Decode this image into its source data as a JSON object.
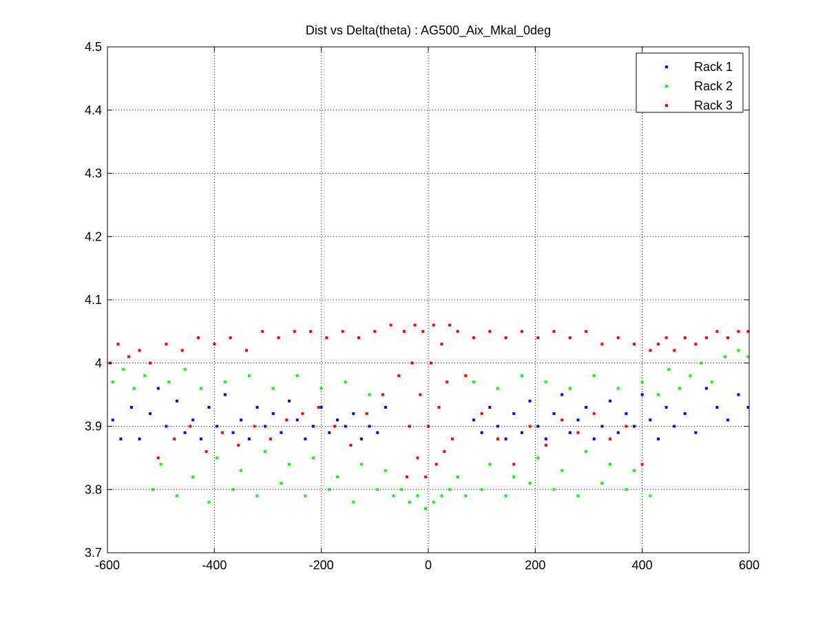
{
  "chart_data": {
    "type": "scatter",
    "title": "Dist vs Delta(theta) : AG500_Aix_Mkal_0deg",
    "xlabel": "",
    "ylabel": "",
    "xlim": [
      -600,
      600
    ],
    "ylim": [
      3.7,
      4.5
    ],
    "xticks": [
      -600,
      -400,
      -200,
      0,
      200,
      400,
      600
    ],
    "yticks": [
      3.7,
      3.8,
      3.9,
      4,
      4.1,
      4.2,
      4.3,
      4.4,
      4.5
    ],
    "xtick_labels": [
      "-600",
      "-400",
      "-200",
      "0",
      "200",
      "400",
      "600"
    ],
    "ytick_labels": [
      "3.7",
      "3.8",
      "3.9",
      "4",
      "4.1",
      "4.2",
      "4.3",
      "4.4",
      "4.5"
    ],
    "grid": true,
    "legend_position": "top-right",
    "series": [
      {
        "name": "Rack 1",
        "color": "#0000ff",
        "points": [
          [
            -590,
            3.91
          ],
          [
            -575,
            3.88
          ],
          [
            -555,
            3.93
          ],
          [
            -540,
            3.88
          ],
          [
            -520,
            3.92
          ],
          [
            -505,
            3.96
          ],
          [
            -490,
            3.9
          ],
          [
            -470,
            3.94
          ],
          [
            -455,
            3.89
          ],
          [
            -440,
            3.91
          ],
          [
            -425,
            3.88
          ],
          [
            -410,
            3.93
          ],
          [
            -395,
            3.9
          ],
          [
            -380,
            3.95
          ],
          [
            -365,
            3.89
          ],
          [
            -350,
            3.91
          ],
          [
            -335,
            3.88
          ],
          [
            -320,
            3.93
          ],
          [
            -305,
            3.9
          ],
          [
            -290,
            3.92
          ],
          [
            -275,
            3.89
          ],
          [
            -260,
            3.94
          ],
          [
            -245,
            3.91
          ],
          [
            -230,
            3.88
          ],
          [
            -215,
            3.9
          ],
          [
            -200,
            3.93
          ],
          [
            -185,
            3.89
          ],
          [
            -170,
            3.91
          ],
          [
            -155,
            3.9
          ],
          [
            -140,
            3.92
          ],
          [
            -125,
            3.88
          ],
          [
            -110,
            3.9
          ],
          [
            -95,
            3.89
          ],
          [
            -80,
            3.93
          ],
          [
            85,
            3.91
          ],
          [
            100,
            3.89
          ],
          [
            115,
            3.93
          ],
          [
            130,
            3.9
          ],
          [
            145,
            3.88
          ],
          [
            160,
            3.92
          ],
          [
            175,
            3.89
          ],
          [
            190,
            3.94
          ],
          [
            205,
            3.9
          ],
          [
            220,
            3.88
          ],
          [
            235,
            3.92
          ],
          [
            250,
            3.95
          ],
          [
            265,
            3.89
          ],
          [
            280,
            3.91
          ],
          [
            295,
            3.93
          ],
          [
            310,
            3.88
          ],
          [
            325,
            3.9
          ],
          [
            340,
            3.94
          ],
          [
            355,
            3.89
          ],
          [
            370,
            3.92
          ],
          [
            385,
            3.9
          ],
          [
            400,
            3.95
          ],
          [
            415,
            3.91
          ],
          [
            430,
            3.88
          ],
          [
            445,
            3.93
          ],
          [
            460,
            3.9
          ],
          [
            480,
            3.92
          ],
          [
            500,
            3.89
          ],
          [
            520,
            3.96
          ],
          [
            540,
            3.93
          ],
          [
            560,
            3.91
          ],
          [
            580,
            3.95
          ],
          [
            598,
            3.93
          ]
        ]
      },
      {
        "name": "Rack 2",
        "color": "#00ff00",
        "points": [
          [
            -590,
            3.97
          ],
          [
            -570,
            3.99
          ],
          [
            -550,
            3.96
          ],
          [
            -530,
            3.98
          ],
          [
            -515,
            3.8
          ],
          [
            -500,
            3.84
          ],
          [
            -485,
            3.97
          ],
          [
            -470,
            3.79
          ],
          [
            -455,
            3.99
          ],
          [
            -440,
            3.82
          ],
          [
            -425,
            3.96
          ],
          [
            -410,
            3.78
          ],
          [
            -395,
            3.85
          ],
          [
            -380,
            3.97
          ],
          [
            -365,
            3.8
          ],
          [
            -350,
            3.83
          ],
          [
            -335,
            3.98
          ],
          [
            -320,
            3.79
          ],
          [
            -305,
            3.86
          ],
          [
            -290,
            3.96
          ],
          [
            -275,
            3.81
          ],
          [
            -260,
            3.84
          ],
          [
            -245,
            3.98
          ],
          [
            -230,
            3.79
          ],
          [
            -215,
            3.85
          ],
          [
            -200,
            3.96
          ],
          [
            -185,
            3.8
          ],
          [
            -170,
            3.82
          ],
          [
            -155,
            3.97
          ],
          [
            -140,
            3.78
          ],
          [
            -125,
            3.84
          ],
          [
            -110,
            3.95
          ],
          [
            -95,
            3.8
          ],
          [
            -80,
            3.83
          ],
          [
            -65,
            3.79
          ],
          [
            -50,
            3.8
          ],
          [
            -35,
            3.78
          ],
          [
            -20,
            3.79
          ],
          [
            -5,
            3.77
          ],
          [
            10,
            3.78
          ],
          [
            25,
            3.79
          ],
          [
            40,
            3.8
          ],
          [
            55,
            3.82
          ],
          [
            70,
            3.79
          ],
          [
            85,
            3.97
          ],
          [
            100,
            3.8
          ],
          [
            115,
            3.84
          ],
          [
            130,
            3.96
          ],
          [
            145,
            3.79
          ],
          [
            160,
            3.82
          ],
          [
            175,
            3.98
          ],
          [
            190,
            3.81
          ],
          [
            205,
            3.85
          ],
          [
            220,
            3.97
          ],
          [
            235,
            3.8
          ],
          [
            250,
            3.83
          ],
          [
            265,
            3.96
          ],
          [
            280,
            3.79
          ],
          [
            295,
            3.86
          ],
          [
            310,
            3.98
          ],
          [
            325,
            3.81
          ],
          [
            340,
            3.84
          ],
          [
            355,
            3.96
          ],
          [
            370,
            3.8
          ],
          [
            385,
            3.83
          ],
          [
            400,
            3.97
          ],
          [
            415,
            3.79
          ],
          [
            430,
            3.95
          ],
          [
            450,
            3.99
          ],
          [
            470,
            3.96
          ],
          [
            490,
            3.98
          ],
          [
            510,
            4.0
          ],
          [
            530,
            3.97
          ],
          [
            555,
            4.01
          ],
          [
            580,
            4.02
          ],
          [
            598,
            4.01
          ]
        ]
      },
      {
        "name": "Rack 3",
        "color": "#ff0000",
        "points": [
          [
            -595,
            4.0
          ],
          [
            -580,
            4.03
          ],
          [
            -560,
            4.01
          ],
          [
            -540,
            4.02
          ],
          [
            -520,
            4.0
          ],
          [
            -505,
            3.85
          ],
          [
            -490,
            4.03
          ],
          [
            -475,
            3.88
          ],
          [
            -460,
            4.02
          ],
          [
            -445,
            3.9
          ],
          [
            -430,
            4.04
          ],
          [
            -415,
            3.86
          ],
          [
            -400,
            4.03
          ],
          [
            -385,
            3.89
          ],
          [
            -370,
            4.04
          ],
          [
            -355,
            3.87
          ],
          [
            -340,
            4.02
          ],
          [
            -325,
            3.9
          ],
          [
            -310,
            4.05
          ],
          [
            -295,
            3.88
          ],
          [
            -280,
            4.04
          ],
          [
            -265,
            3.91
          ],
          [
            -250,
            4.05
          ],
          [
            -235,
            3.92
          ],
          [
            -220,
            4.05
          ],
          [
            -205,
            3.93
          ],
          [
            -190,
            4.04
          ],
          [
            -175,
            3.9
          ],
          [
            -160,
            4.05
          ],
          [
            -145,
            3.87
          ],
          [
            -130,
            4.04
          ],
          [
            -115,
            3.92
          ],
          [
            -100,
            4.05
          ],
          [
            -85,
            3.95
          ],
          [
            -70,
            4.06
          ],
          [
            -55,
            3.98
          ],
          [
            -45,
            4.05
          ],
          [
            -40,
            3.82
          ],
          [
            -35,
            3.9
          ],
          [
            -30,
            4.0
          ],
          [
            -25,
            4.06
          ],
          [
            -20,
            3.85
          ],
          [
            -15,
            3.95
          ],
          [
            -10,
            4.05
          ],
          [
            -5,
            3.82
          ],
          [
            0,
            3.9
          ],
          [
            5,
            4.0
          ],
          [
            10,
            4.06
          ],
          [
            15,
            3.84
          ],
          [
            20,
            3.93
          ],
          [
            25,
            4.03
          ],
          [
            30,
            3.86
          ],
          [
            35,
            3.97
          ],
          [
            40,
            4.06
          ],
          [
            45,
            3.88
          ],
          [
            55,
            4.05
          ],
          [
            70,
            3.98
          ],
          [
            85,
            4.04
          ],
          [
            100,
            3.92
          ],
          [
            115,
            4.05
          ],
          [
            130,
            3.88
          ],
          [
            145,
            4.04
          ],
          [
            160,
            3.84
          ],
          [
            175,
            4.05
          ],
          [
            190,
            3.9
          ],
          [
            205,
            4.04
          ],
          [
            220,
            3.87
          ],
          [
            235,
            4.05
          ],
          [
            250,
            3.91
          ],
          [
            265,
            4.04
          ],
          [
            280,
            3.89
          ],
          [
            295,
            4.05
          ],
          [
            310,
            3.92
          ],
          [
            325,
            4.03
          ],
          [
            340,
            3.88
          ],
          [
            355,
            4.04
          ],
          [
            370,
            3.9
          ],
          [
            385,
            4.03
          ],
          [
            400,
            3.84
          ],
          [
            415,
            4.02
          ],
          [
            430,
            4.03
          ],
          [
            445,
            4.04
          ],
          [
            460,
            4.02
          ],
          [
            480,
            4.04
          ],
          [
            500,
            4.03
          ],
          [
            520,
            4.04
          ],
          [
            540,
            4.05
          ],
          [
            560,
            4.04
          ],
          [
            580,
            4.05
          ],
          [
            598,
            4.05
          ]
        ]
      }
    ]
  }
}
